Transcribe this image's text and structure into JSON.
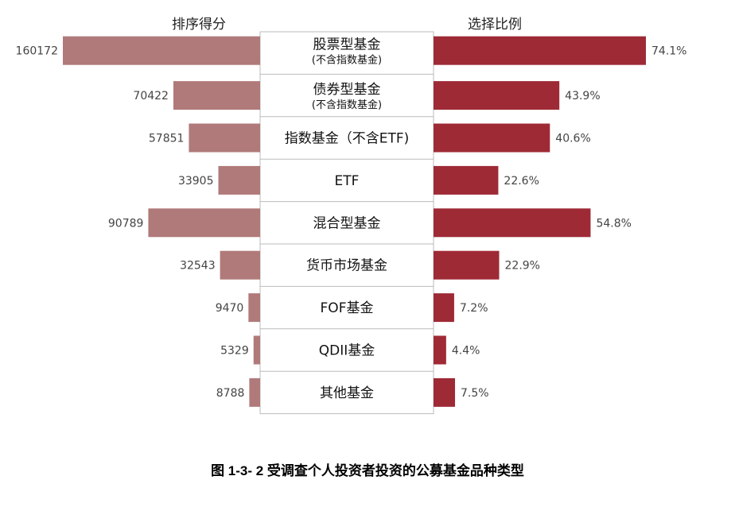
{
  "chart_data": {
    "type": "bar",
    "layout": "butterfly",
    "categories": [
      {
        "label": "股票型基金",
        "sub": "(不含指数基金)"
      },
      {
        "label": "债券型基金",
        "sub": "(不含指数基金)"
      },
      {
        "label": "指数基金（不含ETF)",
        "sub": ""
      },
      {
        "label": "ETF",
        "sub": ""
      },
      {
        "label": "混合型基金",
        "sub": ""
      },
      {
        "label": "货币市场基金",
        "sub": ""
      },
      {
        "label": "FOF基金",
        "sub": ""
      },
      {
        "label": "QDII基金",
        "sub": ""
      },
      {
        "label": "其他基金",
        "sub": ""
      }
    ],
    "series": [
      {
        "name": "排序得分",
        "values": [
          160172,
          70422,
          57851,
          33905,
          90789,
          32543,
          9470,
          5329,
          8788
        ],
        "labels": [
          "160172",
          "70422",
          "57851",
          "33905",
          "90789",
          "32543",
          "9470",
          "5329",
          "8788"
        ],
        "color": "#b07a7a",
        "side": "left"
      },
      {
        "name": "选择比例",
        "values": [
          74.1,
          43.9,
          40.6,
          22.6,
          54.8,
          22.9,
          7.2,
          4.4,
          7.5
        ],
        "labels": [
          "74.1%",
          "43.9%",
          "40.6%",
          "22.6%",
          "54.8%",
          "22.9%",
          "7.2%",
          "4.4%",
          "7.5%"
        ],
        "color": "#9e2a36",
        "side": "right"
      }
    ],
    "title": "图 1-3- 2  受调查个人投资者投资的公募基金品种类型",
    "grid": false
  }
}
